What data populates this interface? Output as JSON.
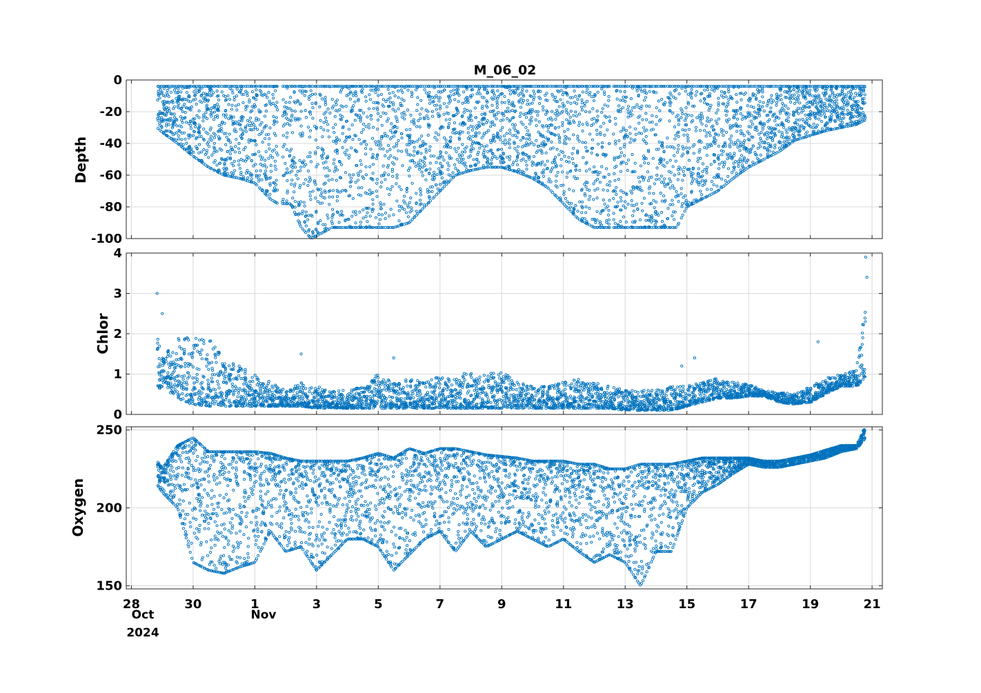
{
  "figure": {
    "title": "M_06_02",
    "series_color": "#0072BD",
    "x_tick_labels": [
      "28",
      "30",
      "1",
      "3",
      "5",
      "7",
      "9",
      "11",
      "13",
      "15",
      "17",
      "19",
      "21"
    ],
    "x_month_labels": [
      "Oct",
      "Nov"
    ],
    "x_year_label": "2024"
  },
  "chart_data": [
    {
      "type": "scatter",
      "title": "M_06_02",
      "ylabel": "Depth",
      "xlim": [
        "2024-10-27 20:00",
        "2024-11-21 08:00"
      ],
      "ylim": [
        -100,
        0
      ],
      "yticks": [
        0,
        -20,
        -40,
        -60,
        -80,
        -100
      ],
      "grid": true,
      "marker": "open circle",
      "color": "#0072BD",
      "note_gaps": [
        "2024-11-01 18:00",
        "2024-11-02 06:00",
        "2024-11-12 12:00",
        "2024-11-14 18:00"
      ],
      "x": [
        "2024-10-28 20:00",
        "2024-10-29 00:00",
        "2024-10-29 12:00",
        "2024-10-30 00:00",
        "2024-10-30 12:00",
        "2024-10-31 00:00",
        "2024-10-31 12:00",
        "2024-11-01 00:00",
        "2024-11-01 12:00",
        "2024-11-01 18:00",
        "2024-11-02 04:00",
        "2024-11-02 12:00",
        "2024-11-02 20:00",
        "2024-11-03 12:00",
        "2024-11-04 00:00",
        "2024-11-04 12:00",
        "2024-11-05 00:00",
        "2024-11-05 12:00",
        "2024-11-06 00:00",
        "2024-11-06 12:00",
        "2024-11-07 00:00",
        "2024-11-07 12:00",
        "2024-11-08 00:00",
        "2024-11-08 12:00",
        "2024-11-09 00:00",
        "2024-11-09 12:00",
        "2024-11-10 00:00",
        "2024-11-10 12:00",
        "2024-11-11 00:00",
        "2024-11-11 12:00",
        "2024-11-12 00:00",
        "2024-11-12 12:00",
        "2024-11-13 00:00",
        "2024-11-13 12:00",
        "2024-11-14 00:00",
        "2024-11-14 16:00",
        "2024-11-15 00:00",
        "2024-11-15 12:00",
        "2024-11-16 00:00",
        "2024-11-16 12:00",
        "2024-11-17 00:00",
        "2024-11-17 12:00",
        "2024-11-18 00:00",
        "2024-11-18 12:00",
        "2024-11-19 00:00",
        "2024-11-19 12:00",
        "2024-11-20 00:00",
        "2024-11-20 12:00",
        "2024-11-20 19:00"
      ],
      "y_top": [
        -4,
        -4,
        -4,
        -4,
        -4,
        -4,
        -4,
        -4,
        -4,
        -4,
        -4,
        -4,
        -4,
        -4,
        -4,
        -4,
        -4,
        -4,
        -4,
        -4,
        -4,
        -4,
        -4,
        -4,
        -4,
        -4,
        -4,
        -4,
        -4,
        -4,
        -4,
        -4,
        -4,
        -4,
        -4,
        -4,
        -4,
        -4,
        -4,
        -4,
        -4,
        -4,
        -4,
        -4,
        -4,
        -4,
        -4,
        -4,
        -4
      ],
      "y_bottom": [
        -30,
        -33,
        -40,
        -48,
        -55,
        -60,
        -62,
        -65,
        -75,
        -78,
        -78,
        -93,
        -100,
        -93,
        -93,
        -93,
        -93,
        -93,
        -90,
        -80,
        -70,
        -60,
        -57,
        -55,
        -55,
        -58,
        -62,
        -68,
        -78,
        -88,
        -93,
        -93,
        -93,
        -93,
        -93,
        -93,
        -80,
        -75,
        -70,
        -62,
        -55,
        -50,
        -45,
        -38,
        -35,
        -32,
        -30,
        -28,
        -25
      ]
    },
    {
      "type": "scatter",
      "ylabel": "Chlor",
      "xlim": [
        "2024-10-27 20:00",
        "2024-11-21 08:00"
      ],
      "ylim": [
        0,
        4
      ],
      "yticks": [
        0,
        1,
        2,
        3,
        4
      ],
      "grid": true,
      "marker": "open circle",
      "color": "#0072BD",
      "x": [
        "2024-10-28 20:00",
        "2024-10-29 00:00",
        "2024-10-29 12:00",
        "2024-10-30 00:00",
        "2024-10-30 12:00",
        "2024-10-31 00:00",
        "2024-10-31 12:00",
        "2024-11-01 00:00",
        "2024-11-01 12:00",
        "2024-11-02 00:00",
        "2024-11-02 12:00",
        "2024-11-03 00:00",
        "2024-11-03 12:00",
        "2024-11-04 00:00",
        "2024-11-04 12:00",
        "2024-11-05 00:00",
        "2024-11-05 12:00",
        "2024-11-06 00:00",
        "2024-11-06 12:00",
        "2024-11-07 00:00",
        "2024-11-07 12:00",
        "2024-11-08 00:00",
        "2024-11-08 12:00",
        "2024-11-09 00:00",
        "2024-11-09 12:00",
        "2024-11-10 00:00",
        "2024-11-10 12:00",
        "2024-11-11 00:00",
        "2024-11-11 12:00",
        "2024-11-12 00:00",
        "2024-11-12 12:00",
        "2024-11-13 00:00",
        "2024-11-13 12:00",
        "2024-11-14 00:00",
        "2024-11-14 12:00",
        "2024-11-15 00:00",
        "2024-11-15 12:00",
        "2024-11-16 00:00",
        "2024-11-16 12:00",
        "2024-11-17 00:00",
        "2024-11-17 12:00",
        "2024-11-18 00:00",
        "2024-11-18 12:00",
        "2024-11-19 00:00",
        "2024-11-19 12:00",
        "2024-11-20 00:00",
        "2024-11-20 12:00",
        "2024-11-20 19:00"
      ],
      "y_low": [
        0.6,
        0.7,
        0.4,
        0.25,
        0.2,
        0.2,
        0.2,
        0.2,
        0.2,
        0.2,
        0.2,
        0.15,
        0.15,
        0.15,
        0.15,
        0.15,
        0.15,
        0.15,
        0.15,
        0.15,
        0.15,
        0.15,
        0.15,
        0.15,
        0.15,
        0.15,
        0.15,
        0.15,
        0.15,
        0.15,
        0.15,
        0.1,
        0.1,
        0.1,
        0.1,
        0.2,
        0.3,
        0.4,
        0.4,
        0.45,
        0.45,
        0.3,
        0.25,
        0.3,
        0.5,
        0.7,
        0.7,
        0.9
      ],
      "y_high": [
        2.1,
        1.4,
        1.9,
        1.9,
        1.9,
        1.4,
        1.2,
        1.0,
        0.8,
        0.6,
        0.8,
        0.7,
        0.6,
        0.6,
        0.7,
        1.0,
        0.8,
        0.9,
        0.8,
        1.0,
        0.9,
        1.1,
        1.0,
        1.1,
        0.8,
        0.7,
        0.7,
        0.8,
        0.9,
        0.8,
        0.7,
        0.6,
        0.6,
        0.6,
        0.7,
        0.7,
        0.8,
        0.9,
        0.8,
        0.75,
        0.6,
        0.55,
        0.5,
        0.7,
        0.9,
        1.0,
        1.1,
        2.7
      ],
      "outliers": [
        [
          "2024-10-28 20:00",
          3.0
        ],
        [
          "2024-10-29 00:00",
          2.5
        ],
        [
          "2024-11-02 12:00",
          1.5
        ],
        [
          "2024-11-05 12:00",
          1.4
        ],
        [
          "2024-11-14 20:00",
          1.2
        ],
        [
          "2024-11-15 06:00",
          1.4
        ],
        [
          "2024-11-19 06:00",
          1.8
        ],
        [
          "2024-11-20 19:00",
          3.9
        ],
        [
          "2024-11-20 20:00",
          3.4
        ]
      ]
    },
    {
      "type": "scatter",
      "ylabel": "Oxygen",
      "xlim": [
        "2024-10-27 20:00",
        "2024-11-21 08:00"
      ],
      "ylim": [
        148,
        252
      ],
      "yticks": [
        150,
        200,
        250
      ],
      "grid": true,
      "marker": "open circle",
      "color": "#0072BD",
      "x": [
        "2024-10-28 20:00",
        "2024-10-29 00:00",
        "2024-10-29 12:00",
        "2024-10-30 00:00",
        "2024-10-30 12:00",
        "2024-10-31 00:00",
        "2024-10-31 12:00",
        "2024-11-01 00:00",
        "2024-11-01 12:00",
        "2024-11-02 00:00",
        "2024-11-02 12:00",
        "2024-11-03 00:00",
        "2024-11-03 12:00",
        "2024-11-04 00:00",
        "2024-11-04 12:00",
        "2024-11-05 00:00",
        "2024-11-05 12:00",
        "2024-11-06 00:00",
        "2024-11-06 12:00",
        "2024-11-07 00:00",
        "2024-11-07 12:00",
        "2024-11-08 00:00",
        "2024-11-08 12:00",
        "2024-11-09 00:00",
        "2024-11-09 12:00",
        "2024-11-10 00:00",
        "2024-11-10 12:00",
        "2024-11-11 00:00",
        "2024-11-11 12:00",
        "2024-11-12 00:00",
        "2024-11-12 12:00",
        "2024-11-13 00:00",
        "2024-11-13 12:00",
        "2024-11-14 00:00",
        "2024-11-14 12:00",
        "2024-11-15 00:00",
        "2024-11-15 12:00",
        "2024-11-16 00:00",
        "2024-11-16 12:00",
        "2024-11-17 00:00",
        "2024-11-17 12:00",
        "2024-11-18 00:00",
        "2024-11-18 12:00",
        "2024-11-19 00:00",
        "2024-11-19 12:00",
        "2024-11-20 00:00",
        "2024-11-20 12:00",
        "2024-11-20 19:00"
      ],
      "y_low": [
        215,
        210,
        200,
        165,
        160,
        158,
        162,
        165,
        185,
        172,
        175,
        160,
        170,
        180,
        180,
        175,
        160,
        170,
        180,
        185,
        172,
        185,
        175,
        180,
        185,
        180,
        175,
        180,
        172,
        165,
        170,
        165,
        150,
        172,
        172,
        200,
        210,
        215,
        222,
        228,
        226,
        226,
        228,
        230,
        232,
        236,
        238,
        245
      ],
      "y_high": [
        230,
        225,
        240,
        245,
        236,
        236,
        236,
        236,
        235,
        232,
        230,
        230,
        230,
        230,
        232,
        235,
        232,
        238,
        235,
        238,
        238,
        236,
        234,
        233,
        232,
        230,
        230,
        230,
        228,
        228,
        225,
        225,
        228,
        228,
        228,
        230,
        232,
        232,
        232,
        232,
        230,
        230,
        232,
        234,
        237,
        240,
        240,
        252
      ]
    }
  ]
}
